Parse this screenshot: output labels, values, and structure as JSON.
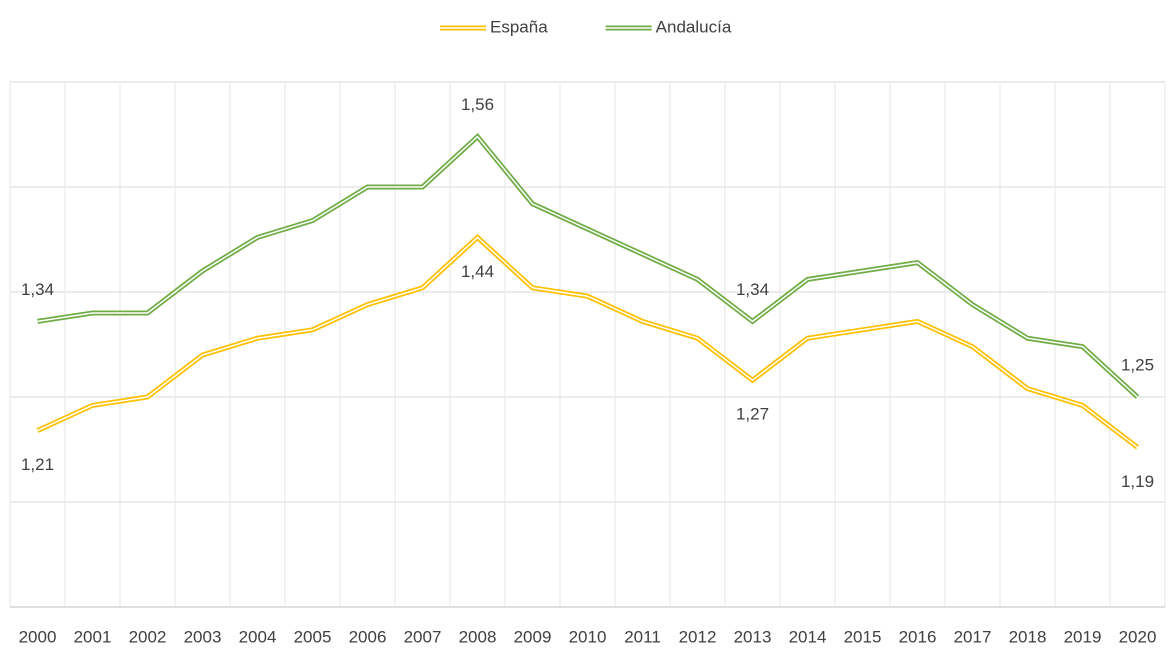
{
  "chart_data": {
    "type": "line",
    "categories": [
      "2000",
      "2001",
      "2002",
      "2003",
      "2004",
      "2005",
      "2006",
      "2007",
      "2008",
      "2009",
      "2010",
      "2011",
      "2012",
      "2013",
      "2014",
      "2015",
      "2016",
      "2017",
      "2018",
      "2019",
      "2020"
    ],
    "series": [
      {
        "name": "España",
        "color": "#ffc000",
        "values": [
          1.21,
          1.24,
          1.25,
          1.3,
          1.32,
          1.33,
          1.36,
          1.38,
          1.44,
          1.38,
          1.37,
          1.34,
          1.32,
          1.27,
          1.32,
          1.33,
          1.34,
          1.31,
          1.26,
          1.24,
          1.19
        ],
        "value_labels": [
          "1,21",
          null,
          null,
          null,
          null,
          null,
          null,
          null,
          "1,44",
          null,
          null,
          null,
          null,
          "1,27",
          null,
          null,
          null,
          null,
          null,
          null,
          "1,19"
        ]
      },
      {
        "name": "Andalucía",
        "color": "#70ad47",
        "values": [
          1.34,
          1.35,
          1.35,
          1.4,
          1.44,
          1.46,
          1.5,
          1.5,
          1.56,
          1.48,
          1.45,
          1.42,
          1.39,
          1.34,
          1.39,
          1.4,
          1.41,
          1.36,
          1.32,
          1.31,
          1.25
        ],
        "value_labels": [
          "1,34",
          null,
          null,
          null,
          null,
          null,
          null,
          null,
          "1,56",
          null,
          null,
          null,
          null,
          "1,34",
          null,
          null,
          null,
          null,
          null,
          null,
          "1,25"
        ]
      }
    ],
    "ylim": [
      1.0,
      1.625
    ],
    "yticks": [
      1.0,
      1.125,
      1.25,
      1.375,
      1.5,
      1.625
    ],
    "grid": true,
    "legend": "top"
  }
}
